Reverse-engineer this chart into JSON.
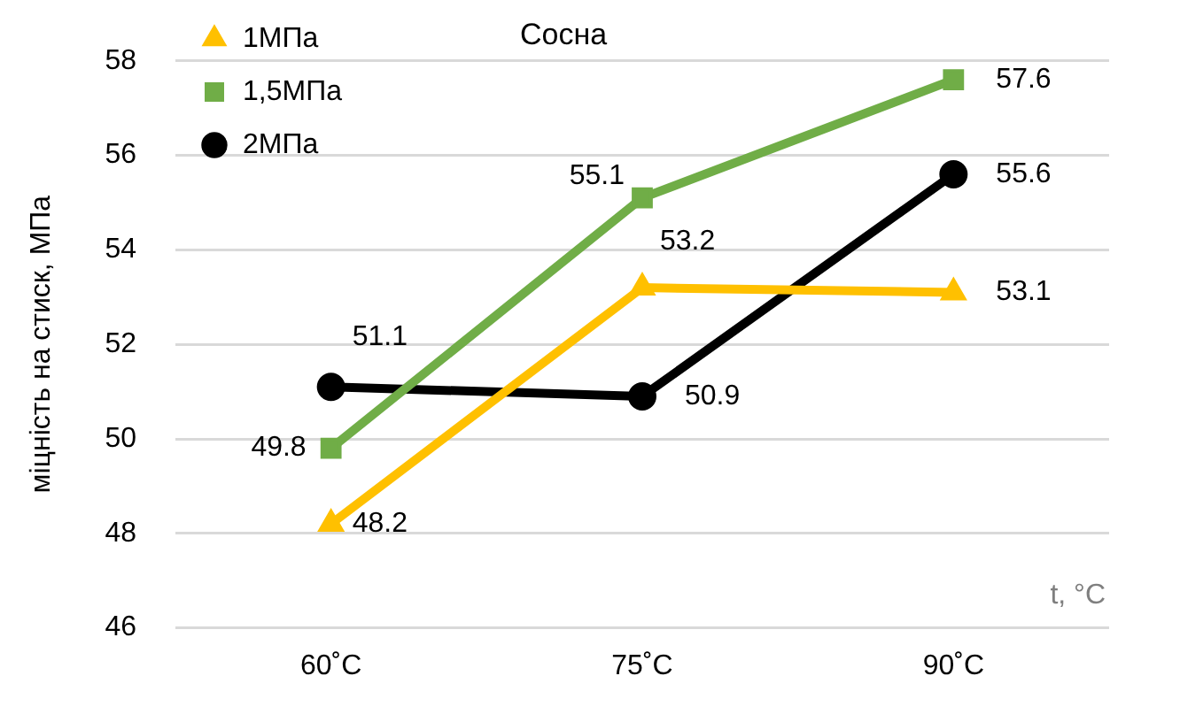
{
  "chart_data": {
    "type": "line",
    "title": "Сосна",
    "xlabel": "t, °C",
    "ylabel": "міцність на стиск, МПа",
    "categories": [
      "60˚C",
      "75˚C",
      "90˚C"
    ],
    "series": [
      {
        "name": "1МПа",
        "color": "#ffc000",
        "marker": "triangle",
        "values": [
          48.2,
          53.2,
          53.1
        ]
      },
      {
        "name": "1,5МПа",
        "color": "#70ad47",
        "marker": "square",
        "values": [
          49.8,
          55.1,
          57.6
        ]
      },
      {
        "name": "2МПа",
        "color": "#000000",
        "marker": "circle",
        "values": [
          51.1,
          50.9,
          55.6
        ]
      }
    ],
    "ylim": [
      46,
      58
    ],
    "yticks": [
      46,
      48,
      50,
      52,
      54,
      56,
      58
    ],
    "grid": "y",
    "legend": "top left",
    "data_labels": true
  }
}
